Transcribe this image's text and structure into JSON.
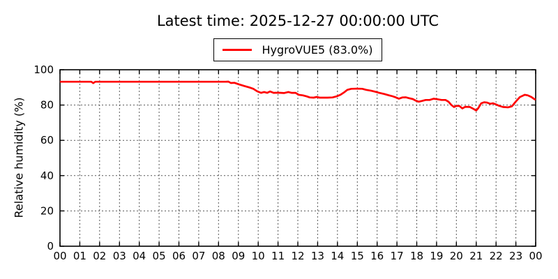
{
  "title": "Latest time: 2025-12-27 00:00:00 UTC",
  "legend": {
    "label": "HygroVUE5 (83.0%)",
    "line_color": "#ff0000"
  },
  "chart_data": {
    "type": "line",
    "title": "Latest time: 2025-12-27 00:00:00 UTC",
    "xlabel": "",
    "ylabel": "Relative humidity (%)",
    "xlim": [
      0,
      24
    ],
    "ylim": [
      0,
      100
    ],
    "x_tick_labels": [
      "00",
      "01",
      "02",
      "03",
      "04",
      "05",
      "06",
      "07",
      "08",
      "09",
      "10",
      "11",
      "12",
      "13",
      "14",
      "15",
      "16",
      "17",
      "18",
      "19",
      "20",
      "21",
      "22",
      "23",
      "00"
    ],
    "y_tick_values": [
      0,
      20,
      40,
      60,
      80,
      100
    ],
    "grid": true,
    "grid_style": "dotted",
    "tick_direction": "in",
    "legend_position": "top-center-outside",
    "series": [
      {
        "name": "HygroVUE5 (83.0%)",
        "color": "#ff0000",
        "latest_value_pct": 83.0,
        "points": [
          [
            0.0,
            93.2
          ],
          [
            1.58,
            93.2
          ],
          [
            1.68,
            92.4
          ],
          [
            1.78,
            93.2
          ],
          [
            8.35,
            93.2
          ],
          [
            8.5,
            93.3
          ],
          [
            8.62,
            92.5
          ],
          [
            8.8,
            92.6
          ],
          [
            9.0,
            91.8
          ],
          [
            9.3,
            90.8
          ],
          [
            9.55,
            90.0
          ],
          [
            9.75,
            89.2
          ],
          [
            9.95,
            87.8
          ],
          [
            10.15,
            86.9
          ],
          [
            10.3,
            87.4
          ],
          [
            10.45,
            86.9
          ],
          [
            10.6,
            87.7
          ],
          [
            10.78,
            86.9
          ],
          [
            11.0,
            87.0
          ],
          [
            11.3,
            86.8
          ],
          [
            11.52,
            87.4
          ],
          [
            11.68,
            86.9
          ],
          [
            11.88,
            86.9
          ],
          [
            12.05,
            85.8
          ],
          [
            12.25,
            85.5
          ],
          [
            12.45,
            84.9
          ],
          [
            12.6,
            84.3
          ],
          [
            12.8,
            84.2
          ],
          [
            12.95,
            84.6
          ],
          [
            13.1,
            84.2
          ],
          [
            13.5,
            84.2
          ],
          [
            13.75,
            84.3
          ],
          [
            13.95,
            84.9
          ],
          [
            14.15,
            85.8
          ],
          [
            14.35,
            87.3
          ],
          [
            14.5,
            88.6
          ],
          [
            14.7,
            89.2
          ],
          [
            15.0,
            89.3
          ],
          [
            15.25,
            89.2
          ],
          [
            15.45,
            88.6
          ],
          [
            15.7,
            88.1
          ],
          [
            15.9,
            87.6
          ],
          [
            16.1,
            86.9
          ],
          [
            16.35,
            86.3
          ],
          [
            16.6,
            85.5
          ],
          [
            16.78,
            85.0
          ],
          [
            16.95,
            84.3
          ],
          [
            17.1,
            83.6
          ],
          [
            17.28,
            84.3
          ],
          [
            17.45,
            84.4
          ],
          [
            17.6,
            83.9
          ],
          [
            17.8,
            83.4
          ],
          [
            17.95,
            82.5
          ],
          [
            18.1,
            81.9
          ],
          [
            18.25,
            82.3
          ],
          [
            18.45,
            82.9
          ],
          [
            18.65,
            82.9
          ],
          [
            18.85,
            83.6
          ],
          [
            19.05,
            83.3
          ],
          [
            19.25,
            82.9
          ],
          [
            19.45,
            82.9
          ],
          [
            19.6,
            81.9
          ],
          [
            19.75,
            80.0
          ],
          [
            19.88,
            78.9
          ],
          [
            20.0,
            79.5
          ],
          [
            20.15,
            79.5
          ],
          [
            20.3,
            78.1
          ],
          [
            20.45,
            79.0
          ],
          [
            20.68,
            78.9
          ],
          [
            20.85,
            77.9
          ],
          [
            21.0,
            76.9
          ],
          [
            21.1,
            78.2
          ],
          [
            21.25,
            81.0
          ],
          [
            21.4,
            81.6
          ],
          [
            21.55,
            81.4
          ],
          [
            21.7,
            80.7
          ],
          [
            21.85,
            81.0
          ],
          [
            22.0,
            80.3
          ],
          [
            22.15,
            79.6
          ],
          [
            22.35,
            78.9
          ],
          [
            22.6,
            78.7
          ],
          [
            22.8,
            79.3
          ],
          [
            23.0,
            82.0
          ],
          [
            23.2,
            84.5
          ],
          [
            23.45,
            85.8
          ],
          [
            23.6,
            85.5
          ],
          [
            23.78,
            84.6
          ],
          [
            23.9,
            83.6
          ],
          [
            24.0,
            83.0
          ]
        ]
      }
    ]
  }
}
